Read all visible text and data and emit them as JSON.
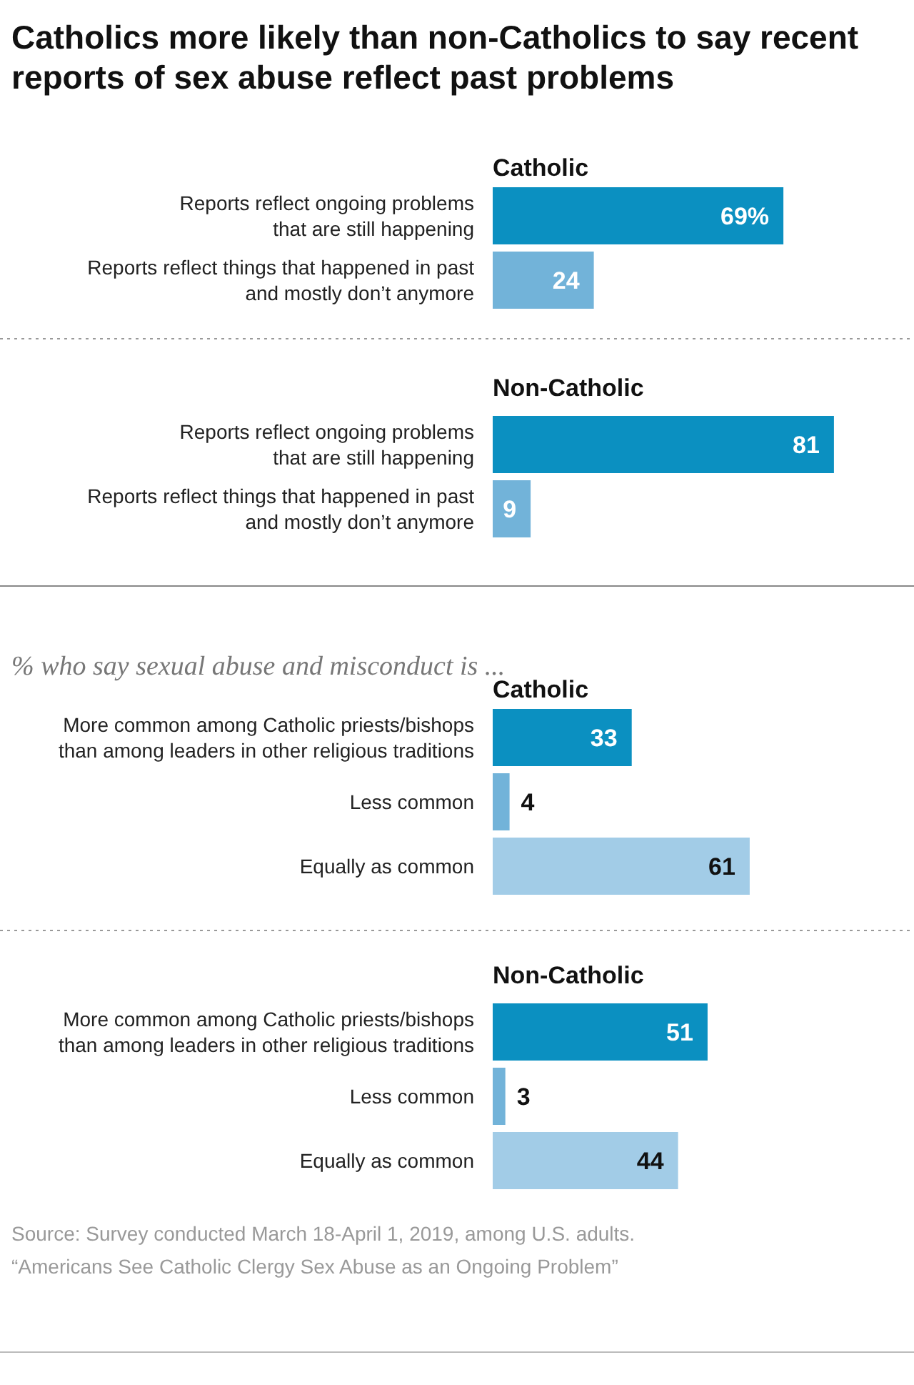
{
  "chart_data": [
    {
      "type": "bar",
      "orientation": "horizontal",
      "title": "Catholics more likely than non-Catholics to say recent reports of sex abuse reflect past problems",
      "subtitle": "Catholic",
      "categories": [
        "Reports reflect ongoing problems\nthat are still happening",
        "Reports reflect things that happened in past\nand mostly don’t anymore"
      ],
      "values": [
        69,
        24
      ],
      "colors": [
        "#0b90c1",
        "#72b3d9"
      ],
      "value_labels": [
        "69%",
        "24"
      ]
    },
    {
      "type": "bar",
      "orientation": "horizontal",
      "title": "Non-Catholic",
      "categories": [
        "Reports reflect ongoing problems\nthat are still happening",
        "Reports reflect things that happened in past\nand mostly don’t anymore"
      ],
      "values": [
        81,
        9
      ],
      "colors": [
        "#0b90c1",
        "#72b3d9"
      ],
      "data_labels": true
    },
    {
      "type": "bar",
      "orientation": "horizontal",
      "title": "% who say sexual abuse and misconduct is ...",
      "subtitle": "Catholic",
      "categories": [
        "More common among Catholic priests/bishops\nthan among leaders in other religious traditions",
        "Less common",
        "Equally as common"
      ],
      "values": [
        33,
        4,
        61
      ],
      "colors": [
        "#0b90c1",
        "#72b3d9",
        "#a2cce7"
      ],
      "data_labels": true
    },
    {
      "type": "bar",
      "orientation": "horizontal",
      "title": "Non-Catholic",
      "categories": [
        "More common among Catholic priests/bishops\nthan among leaders in other religious traditions",
        "Less common",
        "Equally as common"
      ],
      "values": [
        51,
        3,
        44
      ],
      "colors": [
        "#0b90c1",
        "#72b3d9",
        "#a2cce7"
      ],
      "data_labels": true,
      "annotations": [
        "Source: Survey conducted March 18-April 1, 2019, among U.S. adults.",
        "“Americans See Catholic Clergy Sex Abuse as an Ongoing Problem”"
      ]
    }
  ]
}
